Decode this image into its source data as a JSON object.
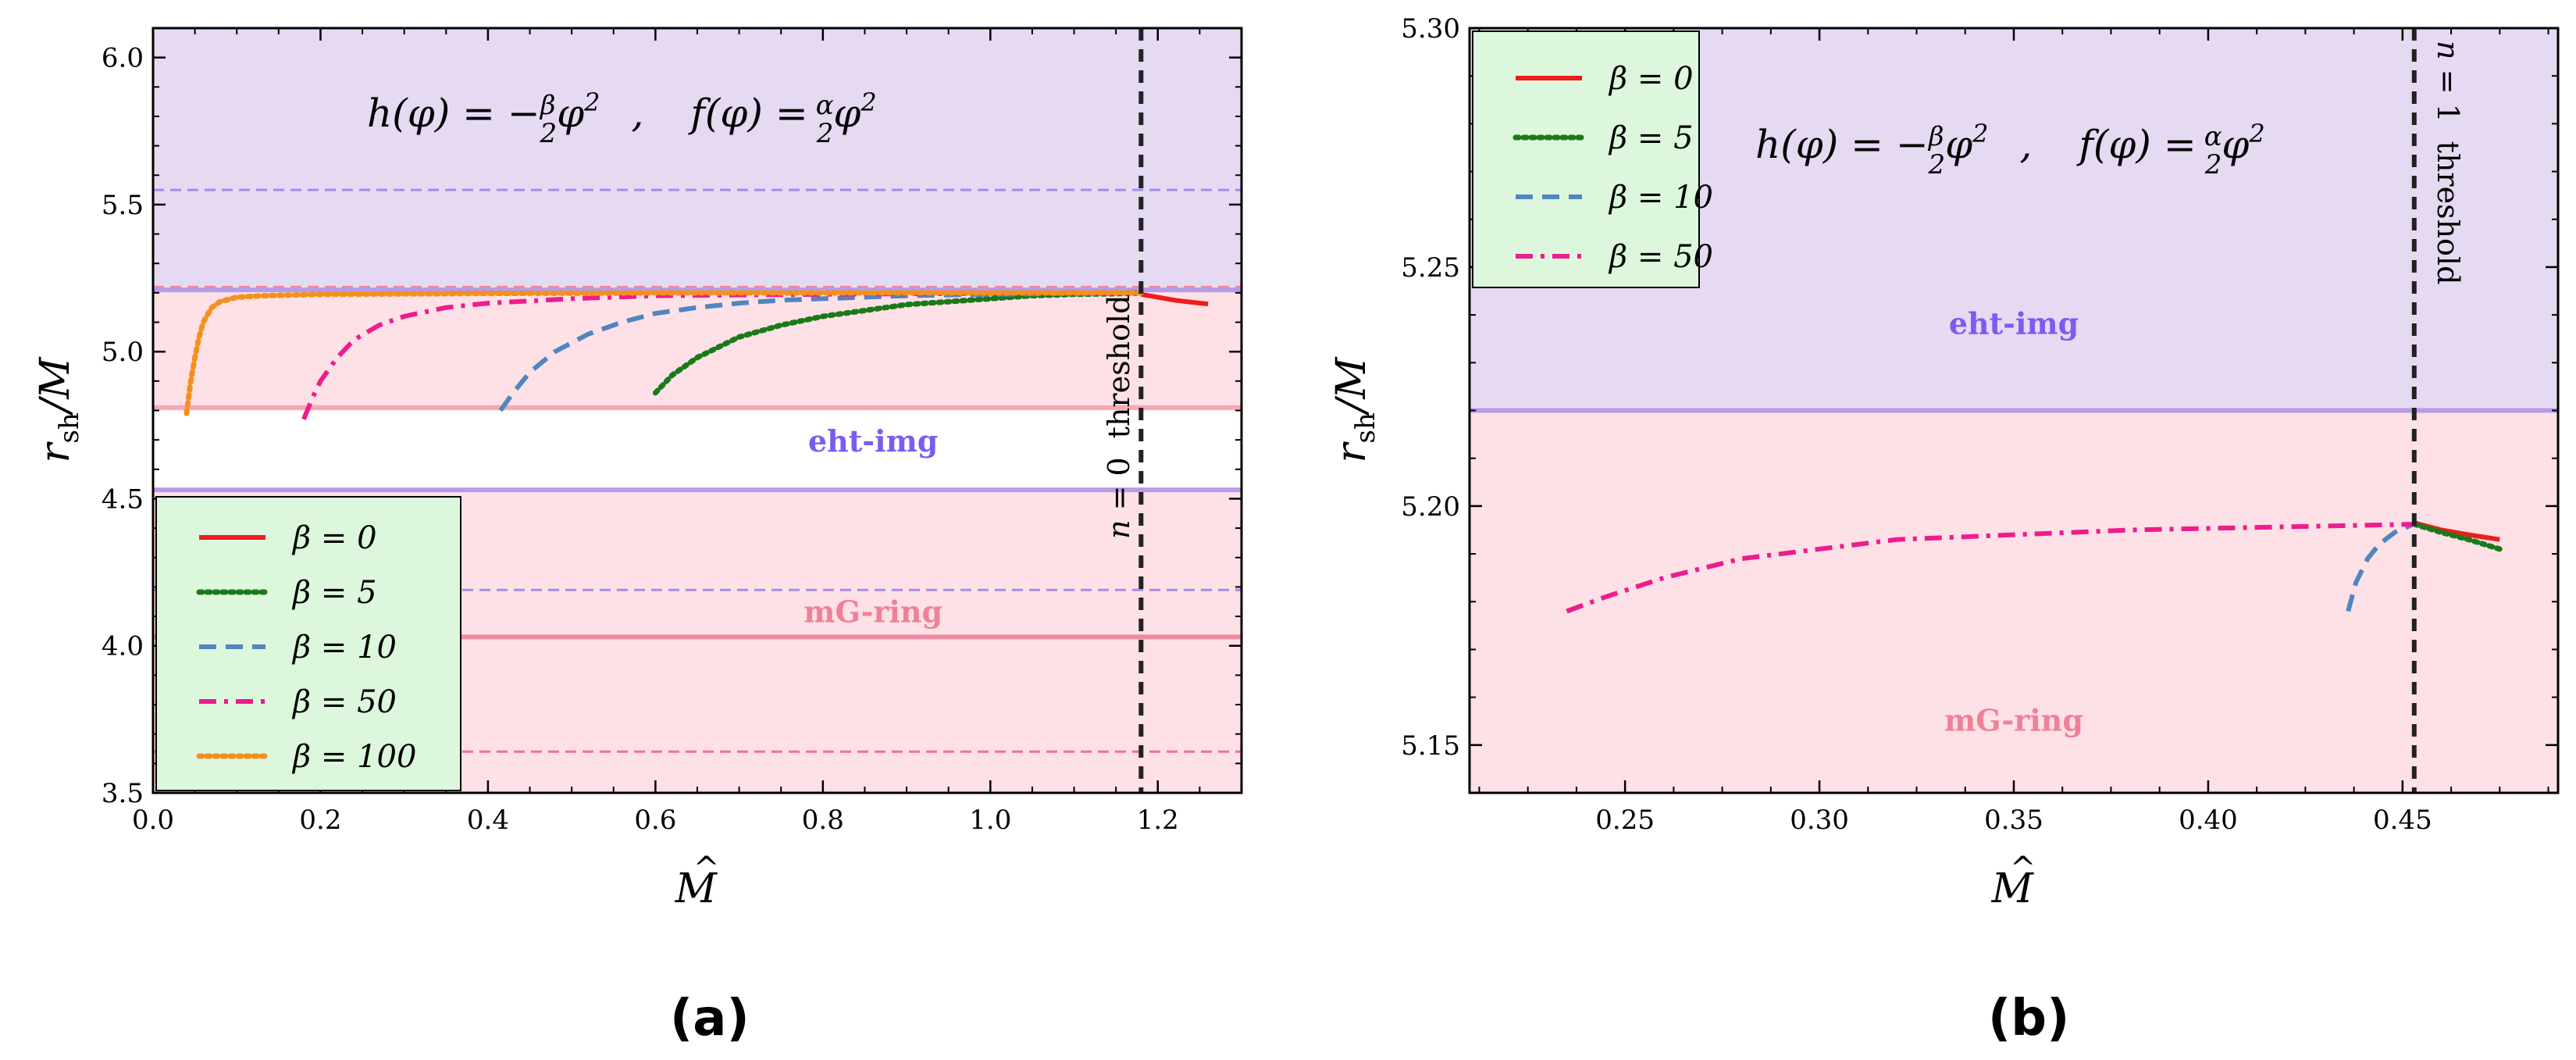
{
  "chart_data": [
    {
      "type": "line",
      "panel_label": "(a)",
      "xlabel": "M̂",
      "ylabel": "r_sh/M",
      "xlim": [
        0.0,
        1.3
      ],
      "ylim": [
        3.5,
        6.1
      ],
      "xticks": [
        0.0,
        0.2,
        0.4,
        0.6,
        0.8,
        1.0,
        1.2
      ],
      "xtick_labels": [
        "0.0",
        "0.2",
        "0.4",
        "0.6",
        "0.8",
        "1.0",
        "1.2"
      ],
      "yticks": [
        3.5,
        4.0,
        4.5,
        5.0,
        5.5,
        6.0
      ],
      "ytick_labels": [
        "3.5",
        "4.0",
        "4.5",
        "5.0",
        "5.5",
        "6.0"
      ],
      "formula": "h(φ) = −(β/2)φ²   ,   f(φ) = (α/2)φ²",
      "bands": [
        {
          "name": "eht-img",
          "low": 4.53,
          "high": 6.1,
          "color": "#e6d9f2"
        },
        {
          "name": "mG-ring",
          "low": 3.5,
          "high": 5.22,
          "color": "#fde1e6"
        },
        {
          "name": "gap",
          "low": 4.53,
          "high": 4.8,
          "color": "#ffffff"
        }
      ],
      "ref_lines": [
        {
          "y": 5.55,
          "color": "#a48de8",
          "style": "dashed"
        },
        {
          "y": 5.22,
          "color": "#f08aa0",
          "style": "dashed"
        },
        {
          "y": 5.21,
          "color": "#b69be8",
          "style": "solid"
        },
        {
          "y": 4.81,
          "color": "#f5a8b6",
          "style": "solid"
        },
        {
          "y": 4.53,
          "color": "#b69be8",
          "style": "solid"
        },
        {
          "y": 4.19,
          "color": "#a48de8",
          "style": "dashed"
        },
        {
          "y": 4.03,
          "color": "#f08aa0",
          "style": "solid"
        },
        {
          "y": 3.64,
          "color": "#f0709a",
          "style": "dashed"
        }
      ],
      "band_labels": [
        {
          "text": "eht-img",
          "x": 0.86,
          "y": 4.66,
          "color": "#7b5cf0"
        },
        {
          "text": "mG-ring",
          "x": 0.86,
          "y": 4.08,
          "color": "#f08098"
        }
      ],
      "threshold": {
        "x": 1.18,
        "label": "n = 0  threshold"
      },
      "legend": {
        "position": "lower-left",
        "bg": "#ddf7dd"
      },
      "series": [
        {
          "name": "β = 0",
          "color": "#ee1c1c",
          "style": "solid",
          "x": [
            1.18,
            1.2,
            1.22,
            1.24,
            1.26
          ],
          "y": [
            5.195,
            5.185,
            5.175,
            5.168,
            5.162
          ]
        },
        {
          "name": "β = 5",
          "color": "#1a7a1a",
          "style": "dotted",
          "x": [
            0.6,
            0.62,
            0.65,
            0.7,
            0.75,
            0.8,
            0.85,
            0.9,
            0.95,
            1.0,
            1.05,
            1.1,
            1.15,
            1.18
          ],
          "y": [
            4.86,
            4.92,
            4.98,
            5.05,
            5.09,
            5.12,
            5.14,
            5.16,
            5.17,
            5.18,
            5.19,
            5.195,
            5.197,
            5.2
          ]
        },
        {
          "name": "β = 10",
          "color": "#4f86c0",
          "style": "dashed",
          "x": [
            0.415,
            0.43,
            0.45,
            0.48,
            0.52,
            0.56,
            0.6,
            0.65,
            0.7,
            0.75,
            0.8,
            0.9,
            1.0,
            1.1,
            1.18
          ],
          "y": [
            4.8,
            4.86,
            4.93,
            5.0,
            5.06,
            5.1,
            5.13,
            5.15,
            5.165,
            5.175,
            5.18,
            5.19,
            5.195,
            5.198,
            5.2
          ]
        },
        {
          "name": "β = 50",
          "color": "#ee1c8c",
          "style": "dashdot",
          "x": [
            0.18,
            0.19,
            0.2,
            0.22,
            0.24,
            0.27,
            0.3,
            0.35,
            0.4,
            0.5,
            0.6,
            0.8,
            1.0,
            1.18
          ],
          "y": [
            4.77,
            4.84,
            4.9,
            4.98,
            5.04,
            5.09,
            5.12,
            5.15,
            5.165,
            5.18,
            5.19,
            5.195,
            5.198,
            5.2
          ]
        },
        {
          "name": "β = 100",
          "color": "#f5901e",
          "style": "dotted",
          "x": [
            0.04,
            0.045,
            0.05,
            0.055,
            0.06,
            0.07,
            0.08,
            0.1,
            0.13,
            0.2,
            0.4,
            0.6,
            0.8,
            1.0,
            1.18
          ],
          "y": [
            4.79,
            4.9,
            4.98,
            5.05,
            5.1,
            5.15,
            5.17,
            5.185,
            5.19,
            5.195,
            5.198,
            5.2,
            5.2,
            5.2,
            5.2
          ]
        }
      ]
    },
    {
      "type": "line",
      "panel_label": "(b)",
      "xlabel": "M̂",
      "ylabel": "r_sh/M",
      "xlim": [
        0.21,
        0.49
      ],
      "ylim": [
        5.14,
        5.3
      ],
      "xticks": [
        0.25,
        0.3,
        0.35,
        0.4,
        0.45
      ],
      "xtick_labels": [
        "0.25",
        "0.30",
        "0.35",
        "0.40",
        "0.45"
      ],
      "yticks": [
        5.15,
        5.2,
        5.25,
        5.3
      ],
      "ytick_labels": [
        "5.15",
        "5.20",
        "5.25",
        "5.30"
      ],
      "formula": "h(φ) = −(β/2)φ²   ,   f(φ) = (α/2)φ²",
      "bands": [
        {
          "name": "eht-img",
          "low": 5.22,
          "high": 5.3,
          "color": "#e6d9f2"
        },
        {
          "name": "mG-ring",
          "low": 5.14,
          "high": 5.22,
          "color": "#fde1e6"
        }
      ],
      "ref_lines": [
        {
          "y": 5.22,
          "color": "#b69be8",
          "style": "solid"
        }
      ],
      "band_labels": [
        {
          "text": "eht-img",
          "x": 0.35,
          "y": 5.236,
          "color": "#7b5cf0"
        },
        {
          "text": "mG-ring",
          "x": 0.35,
          "y": 5.153,
          "color": "#f08098"
        }
      ],
      "threshold": {
        "x": 0.453,
        "label": "n = 1  threshold"
      },
      "legend": {
        "position": "upper-left",
        "bg": "#ddf7dd"
      },
      "series": [
        {
          "name": "β = 0",
          "color": "#ee1c1c",
          "style": "solid",
          "x": [
            0.453,
            0.46,
            0.467,
            0.475
          ],
          "y": [
            5.1965,
            5.195,
            5.194,
            5.193
          ]
        },
        {
          "name": "β = 5",
          "color": "#1a7a1a",
          "style": "dotted",
          "x": [
            0.453,
            0.46,
            0.467,
            0.475
          ],
          "y": [
            5.1962,
            5.1945,
            5.193,
            5.191
          ]
        },
        {
          "name": "β = 10",
          "color": "#4f86c0",
          "style": "dashed",
          "x": [
            0.436,
            0.438,
            0.441,
            0.444,
            0.448,
            0.453
          ],
          "y": [
            5.178,
            5.184,
            5.189,
            5.192,
            5.1945,
            5.1963
          ]
        },
        {
          "name": "β = 50",
          "color": "#ee1c8c",
          "style": "dashdot",
          "x": [
            0.235,
            0.245,
            0.26,
            0.28,
            0.3,
            0.32,
            0.35,
            0.38,
            0.41,
            0.44,
            0.453
          ],
          "y": [
            5.178,
            5.181,
            5.185,
            5.189,
            5.191,
            5.193,
            5.194,
            5.195,
            5.1955,
            5.196,
            5.1962
          ]
        }
      ]
    }
  ]
}
